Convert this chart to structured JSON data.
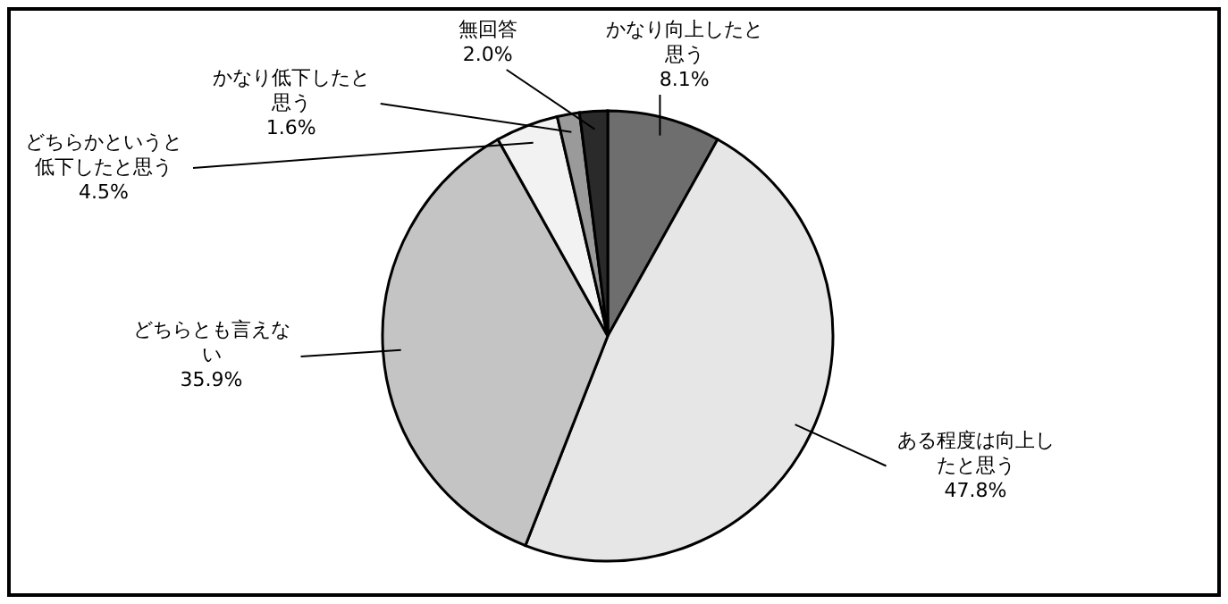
{
  "chart_data": {
    "type": "pie",
    "categories": [
      "かなり向上したと思う",
      "ある程度は向上したと思う",
      "どちらとも言えない",
      "どちらかというと低下したと思う",
      "かなり低下したと思う",
      "無回答"
    ],
    "values": [
      8.1,
      47.8,
      35.9,
      4.5,
      1.6,
      2.0
    ],
    "value_labels": [
      "8.1%",
      "47.8%",
      "35.9%",
      "4.5%",
      "1.6%",
      "2.0%"
    ],
    "colors": [
      "#6e6e6e",
      "#e6e6e6",
      "#c4c4c4",
      "#f2f2f2",
      "#9a9a9a",
      "#2a2a2a"
    ]
  }
}
